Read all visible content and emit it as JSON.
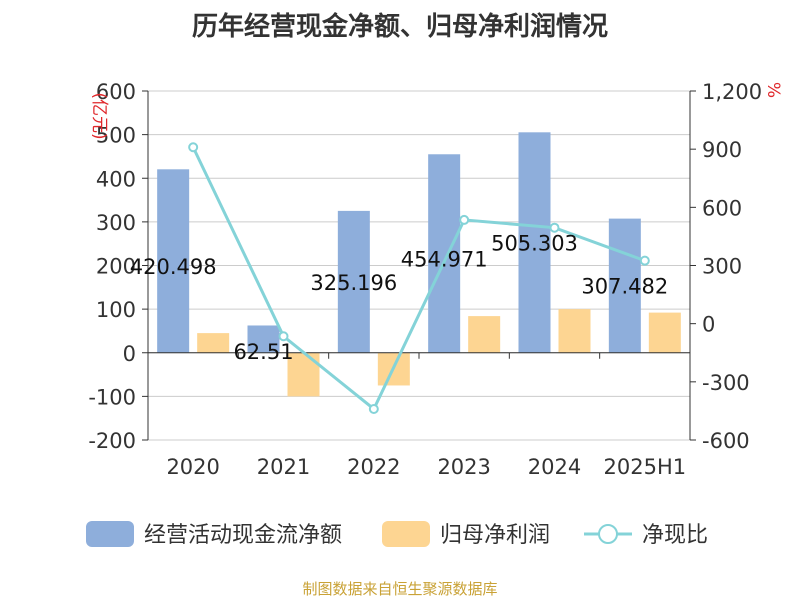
{
  "title": "历年经营现金净额、归母净利润情况",
  "source": "制图数据来自恒生聚源数据库",
  "chart_data": {
    "type": "bar",
    "categories": [
      "2020",
      "2021",
      "2022",
      "2023",
      "2024",
      "2025H1"
    ],
    "series": [
      {
        "name": "经营活动现金流净额",
        "kind": "bar",
        "axis": "left",
        "color": "#8eaedb",
        "values": [
          420.498,
          62.51,
          325.196,
          454.971,
          505.303,
          307.482
        ],
        "labels": [
          "420.498",
          "62.51",
          "325.196",
          "454.971",
          "505.303",
          "307.482"
        ]
      },
      {
        "name": "归母净利润",
        "kind": "bar",
        "axis": "left",
        "color": "#fdd592",
        "values": [
          45,
          -100,
          -75,
          84,
          100,
          92
        ]
      },
      {
        "name": "净现比",
        "kind": "line",
        "axis": "right",
        "color": "#84d3d8",
        "values": [
          910,
          -65,
          -440,
          535,
          495,
          325
        ]
      }
    ],
    "y_left": {
      "label": "(亿元)",
      "ylim": [
        -200,
        600
      ],
      "ticks": [
        "600",
        "500",
        "400",
        "300",
        "200",
        "100",
        "0",
        "-100",
        "-200"
      ]
    },
    "y_right": {
      "label": "%",
      "ylim": [
        -600,
        1200
      ],
      "ticks": [
        "1,200",
        "900",
        "600",
        "300",
        "0",
        "-300",
        "-600"
      ]
    },
    "grid": true,
    "legend_position": "bottom"
  }
}
